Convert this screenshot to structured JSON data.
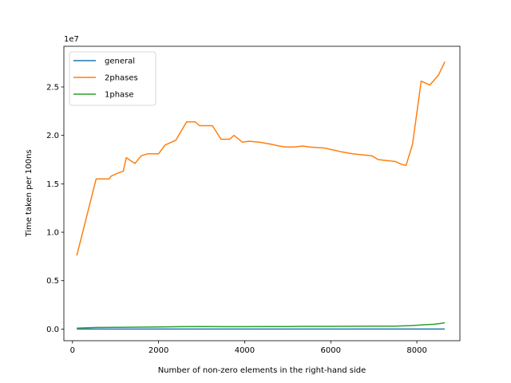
{
  "chart_data": {
    "type": "line",
    "xlabel": "Number of non-zero elements in the right-hand side",
    "ylabel": "Time taken per 100ns",
    "y_offset_label": "1e7",
    "xlim": [
      -200,
      9000
    ],
    "ylim": [
      -1200000,
      29200000
    ],
    "x_ticks": [
      0,
      2000,
      4000,
      6000,
      8000
    ],
    "x_tick_labels": [
      "0",
      "2000",
      "4000",
      "6000",
      "8000"
    ],
    "y_ticks": [
      0,
      5000000,
      10000000,
      15000000,
      20000000,
      25000000
    ],
    "y_tick_labels": [
      "0.0",
      "0.5",
      "1.0",
      "1.5",
      "2.0",
      "2.5"
    ],
    "grid": false,
    "legend_position": "upper-left",
    "series": [
      {
        "name": "general",
        "color": "#1f77b4",
        "x": [
          100,
          2000,
          4000,
          6000,
          8000,
          8650
        ],
        "y": [
          0,
          0,
          0,
          0,
          0,
          0
        ]
      },
      {
        "name": "2phases",
        "color": "#ff7f0e",
        "x": [
          100,
          550,
          680,
          850,
          900,
          1050,
          1180,
          1250,
          1450,
          1600,
          1750,
          1900,
          2000,
          2150,
          2400,
          2650,
          2850,
          2950,
          3100,
          3250,
          3450,
          3650,
          3750,
          3950,
          4100,
          4350,
          4600,
          4800,
          4950,
          5150,
          5350,
          5500,
          5850,
          6050,
          6250,
          6500,
          6700,
          6950,
          7100,
          7300,
          7500,
          7650,
          7750,
          7900,
          8100,
          8300,
          8500,
          8650
        ],
        "y": [
          7600000,
          15500000,
          15500000,
          15500000,
          15800000,
          16100000,
          16300000,
          17700000,
          17100000,
          17900000,
          18100000,
          18100000,
          18100000,
          19000000,
          19500000,
          21400000,
          21400000,
          21000000,
          21000000,
          21000000,
          19600000,
          19600000,
          20000000,
          19300000,
          19400000,
          19300000,
          19100000,
          18900000,
          18800000,
          18800000,
          18900000,
          18800000,
          18700000,
          18500000,
          18300000,
          18100000,
          18000000,
          17900000,
          17500000,
          17400000,
          17300000,
          17000000,
          16900000,
          19100000,
          25600000,
          25200000,
          26200000,
          27600000
        ]
      },
      {
        "name": "1phase",
        "color": "#2ca02c",
        "x": [
          100,
          550,
          1000,
          1500,
          2000,
          2500,
          3000,
          3500,
          4000,
          4500,
          5000,
          5500,
          6000,
          6500,
          7000,
          7500,
          7800,
          8000,
          8200,
          8400,
          8550,
          8650
        ],
        "y": [
          100000,
          170000,
          180000,
          200000,
          220000,
          250000,
          260000,
          250000,
          250000,
          260000,
          270000,
          280000,
          280000,
          290000,
          300000,
          310000,
          350000,
          400000,
          460000,
          500000,
          580000,
          650000
        ]
      }
    ]
  }
}
